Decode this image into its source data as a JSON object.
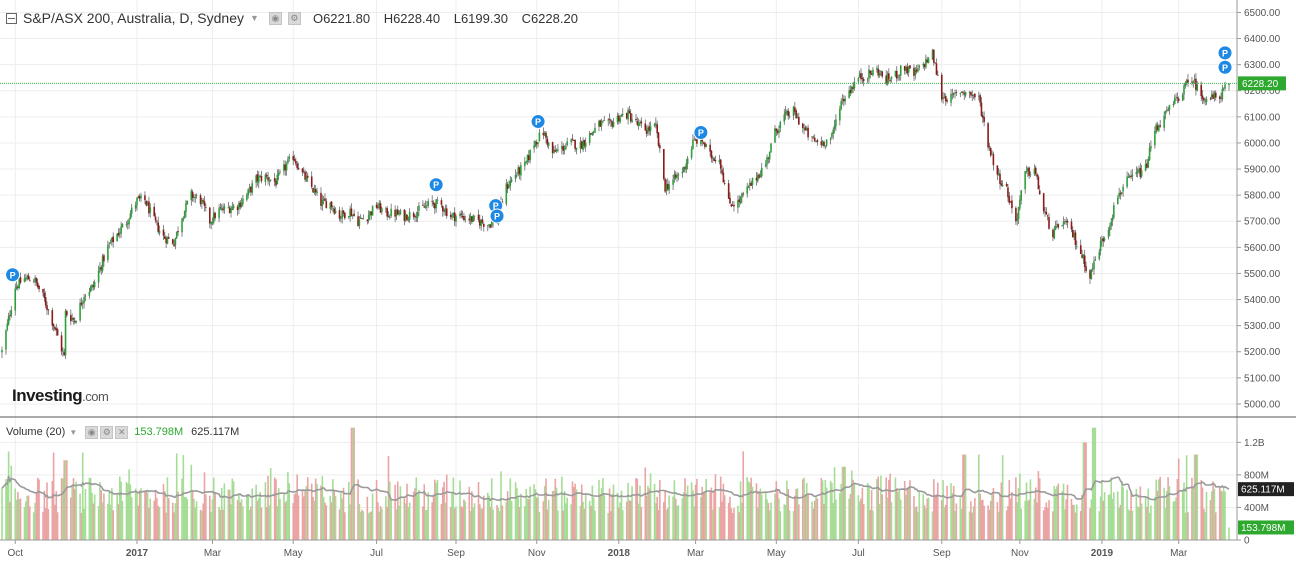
{
  "header": {
    "title": "S&P/ASX 200, Australia, D, Sydney",
    "ohlc": [
      {
        "k": "O",
        "v": "6221.80"
      },
      {
        "k": "H",
        "v": "6228.40"
      },
      {
        "k": "L",
        "v": "6199.30"
      },
      {
        "k": "C",
        "v": "6228.20"
      }
    ]
  },
  "volume_header": {
    "label": "Volume (20)",
    "current": "153.798M",
    "ma": "625.117M"
  },
  "logo": {
    "brand": "Investing",
    "domain": ".com"
  },
  "colors": {
    "up": "#2e9e3a",
    "down": "#8b1a1a",
    "wick": "#555555",
    "vol_up": "#a6dd96",
    "vol_down": "#eba4a4",
    "ma_line": "#9a9a9a",
    "price_line": "#3ab54a",
    "marker": "#1e88e5",
    "grid": "#ededed"
  },
  "chart_data": [
    {
      "type": "candlestick",
      "title": "S&P/ASX 200, Australia, D, Sydney",
      "ylim": [
        4950,
        6540
      ],
      "y_ticks": [
        "6500.00",
        "6400.00",
        "6300.00",
        "6200.00",
        "6100.00",
        "6000.00",
        "5900.00",
        "5800.00",
        "5700.00",
        "5600.00",
        "5500.00",
        "5400.00",
        "5300.00",
        "5200.00",
        "5100.00",
        "5000.00"
      ],
      "x_ticks": [
        "Oct",
        "2017",
        "Mar",
        "May",
        "Jul",
        "Sep",
        "Nov",
        "2018",
        "Mar",
        "May",
        "Jul",
        "Sep",
        "Nov",
        "2019",
        "Mar"
      ],
      "x_range": [
        "2016-09-23",
        "2019-04-08"
      ],
      "last_price": {
        "label": "6228.20",
        "value": 6228.2
      },
      "price_path": [
        [
          "2016-09-23",
          5200
        ],
        [
          "2016-10-03",
          5450
        ],
        [
          "2016-10-10",
          5480
        ],
        [
          "2016-10-17",
          5480
        ],
        [
          "2016-10-25",
          5400
        ],
        [
          "2016-11-02",
          5290
        ],
        [
          "2016-11-09",
          5180
        ],
        [
          "2016-11-10",
          5350
        ],
        [
          "2016-11-17",
          5320
        ],
        [
          "2016-11-24",
          5420
        ],
        [
          "2016-12-01",
          5450
        ],
        [
          "2016-12-06",
          5520
        ],
        [
          "2016-12-12",
          5600
        ],
        [
          "2016-12-19",
          5650
        ],
        [
          "2016-12-26",
          5700
        ],
        [
          "2017-01-03",
          5780
        ],
        [
          "2017-01-09",
          5780
        ],
        [
          "2017-01-16",
          5700
        ],
        [
          "2017-01-23",
          5640
        ],
        [
          "2017-01-31",
          5620
        ],
        [
          "2017-02-06",
          5720
        ],
        [
          "2017-02-13",
          5800
        ],
        [
          "2017-02-20",
          5780
        ],
        [
          "2017-02-27",
          5700
        ],
        [
          "2017-03-06",
          5740
        ],
        [
          "2017-03-13",
          5750
        ],
        [
          "2017-03-20",
          5760
        ],
        [
          "2017-03-27",
          5800
        ],
        [
          "2017-04-03",
          5860
        ],
        [
          "2017-04-10",
          5870
        ],
        [
          "2017-04-18",
          5850
        ],
        [
          "2017-04-24",
          5900
        ],
        [
          "2017-05-01",
          5950
        ],
        [
          "2017-05-08",
          5880
        ],
        [
          "2017-05-15",
          5830
        ],
        [
          "2017-05-22",
          5770
        ],
        [
          "2017-05-29",
          5770
        ],
        [
          "2017-06-05",
          5720
        ],
        [
          "2017-06-13",
          5740
        ],
        [
          "2017-06-19",
          5700
        ],
        [
          "2017-06-26",
          5720
        ],
        [
          "2017-07-03",
          5760
        ],
        [
          "2017-07-10",
          5730
        ],
        [
          "2017-07-17",
          5730
        ],
        [
          "2017-07-24",
          5720
        ],
        [
          "2017-07-31",
          5730
        ],
        [
          "2017-08-07",
          5750
        ],
        [
          "2017-08-14",
          5770
        ],
        [
          "2017-08-21",
          5760
        ],
        [
          "2017-08-28",
          5720
        ],
        [
          "2017-09-04",
          5720
        ],
        [
          "2017-09-11",
          5710
        ],
        [
          "2017-09-18",
          5700
        ],
        [
          "2017-09-25",
          5690
        ],
        [
          "2017-10-02",
          5700
        ],
        [
          "2017-10-09",
          5830
        ],
        [
          "2017-10-16",
          5880
        ],
        [
          "2017-10-23",
          5910
        ],
        [
          "2017-10-30",
          6000
        ],
        [
          "2017-11-06",
          6040
        ],
        [
          "2017-11-13",
          5960
        ],
        [
          "2017-11-20",
          5980
        ],
        [
          "2017-11-27",
          6000
        ],
        [
          "2017-12-04",
          5990
        ],
        [
          "2017-12-11",
          6030
        ],
        [
          "2017-12-18",
          6070
        ],
        [
          "2017-12-26",
          6070
        ],
        [
          "2018-01-02",
          6100
        ],
        [
          "2018-01-09",
          6110
        ],
        [
          "2018-01-16",
          6070
        ],
        [
          "2018-01-23",
          6050
        ],
        [
          "2018-01-30",
          6060
        ],
        [
          "2018-02-06",
          5830
        ],
        [
          "2018-02-13",
          5860
        ],
        [
          "2018-02-20",
          5900
        ],
        [
          "2018-02-27",
          6000
        ],
        [
          "2018-03-05",
          6020
        ],
        [
          "2018-03-12",
          5950
        ],
        [
          "2018-03-19",
          5940
        ],
        [
          "2018-03-26",
          5770
        ],
        [
          "2018-04-02",
          5770
        ],
        [
          "2018-04-09",
          5820
        ],
        [
          "2018-04-16",
          5870
        ],
        [
          "2018-04-23",
          5920
        ],
        [
          "2018-04-30",
          6040
        ],
        [
          "2018-05-07",
          6100
        ],
        [
          "2018-05-14",
          6120
        ],
        [
          "2018-05-21",
          6060
        ],
        [
          "2018-05-28",
          6010
        ],
        [
          "2018-06-04",
          6000
        ],
        [
          "2018-06-12",
          6020
        ],
        [
          "2018-06-18",
          6150
        ],
        [
          "2018-06-25",
          6200
        ],
        [
          "2018-07-02",
          6250
        ],
        [
          "2018-07-09",
          6260
        ],
        [
          "2018-07-16",
          6280
        ],
        [
          "2018-07-23",
          6240
        ],
        [
          "2018-07-30",
          6260
        ],
        [
          "2018-08-06",
          6290
        ],
        [
          "2018-08-13",
          6260
        ],
        [
          "2018-08-20",
          6300
        ],
        [
          "2018-08-27",
          6340
        ],
        [
          "2018-09-03",
          6180
        ],
        [
          "2018-09-10",
          6170
        ],
        [
          "2018-09-17",
          6200
        ],
        [
          "2018-09-24",
          6190
        ],
        [
          "2018-10-01",
          6170
        ],
        [
          "2018-10-08",
          6000
        ],
        [
          "2018-10-15",
          5880
        ],
        [
          "2018-10-22",
          5820
        ],
        [
          "2018-10-29",
          5700
        ],
        [
          "2018-11-05",
          5880
        ],
        [
          "2018-11-12",
          5900
        ],
        [
          "2018-11-19",
          5740
        ],
        [
          "2018-11-26",
          5650
        ],
        [
          "2018-12-03",
          5700
        ],
        [
          "2018-12-10",
          5660
        ],
        [
          "2018-12-17",
          5580
        ],
        [
          "2018-12-24",
          5490
        ],
        [
          "2018-12-31",
          5600
        ],
        [
          "2019-01-07",
          5680
        ],
        [
          "2019-01-14",
          5800
        ],
        [
          "2019-01-21",
          5850
        ],
        [
          "2019-01-28",
          5880
        ],
        [
          "2019-02-04",
          5900
        ],
        [
          "2019-02-11",
          6050
        ],
        [
          "2019-02-18",
          6100
        ],
        [
          "2019-02-25",
          6150
        ],
        [
          "2019-03-04",
          6200
        ],
        [
          "2019-03-11",
          6250
        ],
        [
          "2019-03-18",
          6180
        ],
        [
          "2019-03-25",
          6170
        ],
        [
          "2019-04-01",
          6180
        ],
        [
          "2019-04-08",
          6228
        ]
      ],
      "event_markers": [
        {
          "label": "P",
          "date": "2016-10-01",
          "value": 5495
        },
        {
          "label": "P",
          "date": "2017-08-17",
          "value": 5840
        },
        {
          "label": "P",
          "date": "2017-10-01",
          "value": 5760
        },
        {
          "label": "P",
          "date": "2017-10-02",
          "value": 5720
        },
        {
          "label": "P",
          "date": "2017-11-02",
          "value": 6082
        },
        {
          "label": "P",
          "date": "2018-03-05",
          "value": 6040
        },
        {
          "label": "P",
          "date": "2019-04-05",
          "value": 6345
        },
        {
          "label": "P",
          "date": "2019-04-05",
          "value": 6290
        }
      ]
    },
    {
      "type": "bar",
      "title": "Volume (20)",
      "ylim": [
        0,
        1450
      ],
      "y_ticks": [
        {
          "label": "1.2B",
          "value": 1200
        },
        {
          "label": "800M",
          "value": 800
        },
        {
          "label": "400M",
          "value": 400
        },
        {
          "label": "0",
          "value": 0
        }
      ],
      "ma_label": {
        "label": "625.117M",
        "value": 625
      },
      "current_label": {
        "label": "153.798M",
        "value": 154
      },
      "typical_volume": 600,
      "spikes": [
        {
          "date": "2016-11-10",
          "value": 980
        },
        {
          "date": "2017-06-15",
          "value": 1380
        },
        {
          "date": "2018-06-21",
          "value": 900
        },
        {
          "date": "2018-09-20",
          "value": 1050
        },
        {
          "date": "2018-12-20",
          "value": 1200
        },
        {
          "date": "2018-12-27",
          "value": 1380
        },
        {
          "date": "2019-03-14",
          "value": 1050
        }
      ],
      "x_ticks": [
        "Oct",
        "2017",
        "Mar",
        "May",
        "Jul",
        "Sep",
        "Nov",
        "2018",
        "Mar",
        "May",
        "Jul",
        "Sep",
        "Nov",
        "2019",
        "Mar"
      ]
    }
  ]
}
